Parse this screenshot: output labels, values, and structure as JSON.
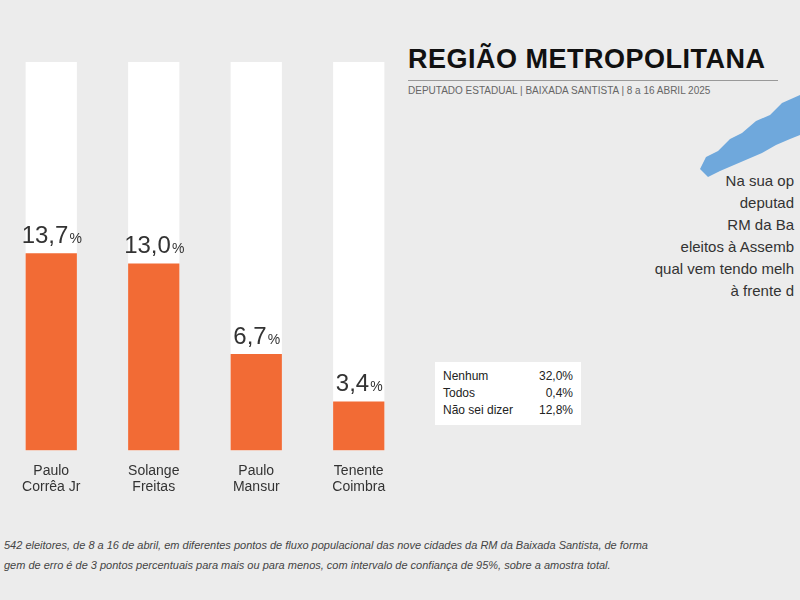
{
  "chart_data": {
    "type": "bar",
    "title": "REGIÃO METROPOLITANA",
    "subtitle": "DEPUTADO ESTADUAL | BAIXADA SANTISTA | 8 a 16 ABRIL 2025",
    "categories": [
      "Paulo Corrêa Jr",
      "Solange Freitas",
      "Paulo Mansur",
      "Tenente Coimbra"
    ],
    "values": [
      13.7,
      13.0,
      6.7,
      3.4
    ],
    "value_labels": [
      "13,7%",
      "13,0%",
      "6,7%",
      "3,4%"
    ],
    "color": "#f26b35",
    "ylim": [
      0,
      27
    ],
    "grid": false,
    "data_labels": true,
    "tick_labels": "x",
    "question": [
      "Na sua op",
      "deputad",
      "RM da Ba",
      "eleitos à Assemb",
      "qual vem tendo melh",
      "à frente d"
    ],
    "other_answers": [
      {
        "label": "Nenhum",
        "value": "32,0%"
      },
      {
        "label": "Todos",
        "value": "0,4%"
      },
      {
        "label": "Não sei dizer",
        "value": "12,8%"
      }
    ],
    "footnote": [
      "542 eleitores, de 8 a 16 de abril, em diferentes pontos de fluxo populacional das nove cidades da RM da Baixada Santista, de forma",
      "gem de erro é de 3 pontos percentuais para mais ou para menos, com intervalo de confiança de 95%, sobre a amostra total."
    ]
  }
}
